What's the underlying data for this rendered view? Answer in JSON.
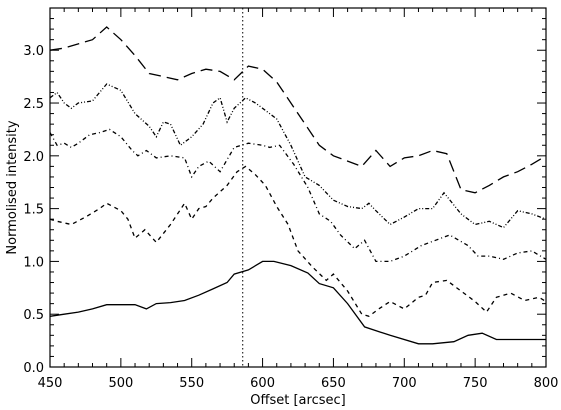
{
  "chart_data": {
    "type": "line",
    "title": "",
    "xlabel": "Offset [arcsec]",
    "ylabel": "Normolised intensity",
    "xlim": [
      450,
      800
    ],
    "ylim": [
      0.0,
      3.4
    ],
    "xticks": [
      450,
      500,
      550,
      600,
      650,
      700,
      750,
      800
    ],
    "xtick_labels": [
      "450",
      "500",
      "550",
      "600",
      "650",
      "700",
      "750",
      "800"
    ],
    "yticks": [
      0.0,
      0.5,
      1.0,
      1.5,
      2.0,
      2.5,
      3.0
    ],
    "ytick_labels": [
      "0.0",
      "0.5",
      "1.0",
      "1.5",
      "2.0",
      "2.5",
      "3.0"
    ],
    "grid": false,
    "reference_line": {
      "x": 586,
      "style": "dotted"
    },
    "series": [
      {
        "style": "solid",
        "color": "#000000",
        "x": [
          450,
          460,
          470,
          480,
          490,
          500,
          510,
          518,
          525,
          535,
          545,
          555,
          565,
          575,
          580,
          590,
          600,
          608,
          620,
          632,
          640,
          650,
          660,
          672,
          690,
          710,
          720,
          735,
          745,
          755,
          765,
          780,
          800
        ],
        "y": [
          0.48,
          0.5,
          0.52,
          0.55,
          0.59,
          0.59,
          0.59,
          0.55,
          0.6,
          0.61,
          0.63,
          0.68,
          0.74,
          0.8,
          0.88,
          0.92,
          1.0,
          1.0,
          0.96,
          0.89,
          0.79,
          0.75,
          0.6,
          0.38,
          0.3,
          0.22,
          0.22,
          0.24,
          0.3,
          0.32,
          0.26,
          0.26,
          0.26
        ]
      },
      {
        "style": "dashed",
        "color": "#000000",
        "x": [
          450,
          455,
          465,
          475,
          485,
          490,
          500,
          505,
          510,
          517,
          525,
          535,
          545,
          550,
          555,
          560,
          565,
          575,
          582,
          588,
          595,
          602,
          610,
          618,
          625,
          635,
          645,
          650,
          660,
          670,
          675,
          682,
          690,
          700,
          710,
          715,
          720,
          730,
          740,
          750,
          758,
          765,
          775,
          785,
          795,
          800
        ],
        "y": [
          1.4,
          1.38,
          1.35,
          1.42,
          1.5,
          1.55,
          1.48,
          1.4,
          1.22,
          1.3,
          1.18,
          1.35,
          1.55,
          1.4,
          1.5,
          1.52,
          1.6,
          1.72,
          1.85,
          1.9,
          1.82,
          1.72,
          1.52,
          1.35,
          1.1,
          0.95,
          0.82,
          0.88,
          0.72,
          0.5,
          0.48,
          0.55,
          0.62,
          0.55,
          0.66,
          0.68,
          0.8,
          0.82,
          0.72,
          0.62,
          0.52,
          0.66,
          0.7,
          0.63,
          0.66,
          0.62
        ]
      },
      {
        "style": "dash-dot",
        "color": "#000000",
        "x": [
          450,
          455,
          460,
          465,
          470,
          478,
          485,
          492,
          500,
          508,
          512,
          518,
          525,
          535,
          545,
          550,
          555,
          562,
          570,
          580,
          590,
          600,
          605,
          612,
          622,
          632,
          640,
          648,
          655,
          665,
          672,
          680,
          690,
          700,
          712,
          722,
          732,
          745,
          752,
          760,
          770,
          780,
          790,
          800
        ],
        "y": [
          2.22,
          2.1,
          2.12,
          2.08,
          2.12,
          2.2,
          2.22,
          2.25,
          2.18,
          2.05,
          2.0,
          2.05,
          1.98,
          2.0,
          1.98,
          1.8,
          1.9,
          1.95,
          1.85,
          2.08,
          2.12,
          2.1,
          2.08,
          2.1,
          1.92,
          1.7,
          1.45,
          1.38,
          1.25,
          1.12,
          1.2,
          1.0,
          1.0,
          1.05,
          1.15,
          1.2,
          1.25,
          1.15,
          1.05,
          1.05,
          1.02,
          1.08,
          1.1,
          1.02
        ]
      },
      {
        "style": "dash-dot-dot",
        "color": "#000000",
        "x": [
          450,
          455,
          460,
          465,
          470,
          480,
          490,
          500,
          510,
          520,
          525,
          530,
          535,
          542,
          550,
          558,
          565,
          570,
          575,
          580,
          588,
          595,
          600,
          610,
          620,
          630,
          640,
          650,
          660,
          670,
          675,
          680,
          690,
          700,
          710,
          720,
          728,
          740,
          750,
          760,
          770,
          775,
          780,
          790,
          800
        ],
        "y": [
          2.55,
          2.6,
          2.5,
          2.45,
          2.5,
          2.52,
          2.68,
          2.62,
          2.4,
          2.28,
          2.18,
          2.32,
          2.3,
          2.1,
          2.18,
          2.3,
          2.5,
          2.55,
          2.32,
          2.45,
          2.55,
          2.5,
          2.45,
          2.35,
          2.1,
          1.8,
          1.72,
          1.58,
          1.52,
          1.5,
          1.55,
          1.48,
          1.35,
          1.42,
          1.5,
          1.5,
          1.65,
          1.45,
          1.35,
          1.38,
          1.32,
          1.4,
          1.48,
          1.45,
          1.4
        ]
      },
      {
        "style": "long-dash",
        "color": "#000000",
        "x": [
          450,
          460,
          470,
          480,
          490,
          500,
          510,
          520,
          530,
          540,
          550,
          560,
          570,
          580,
          590,
          600,
          610,
          620,
          630,
          640,
          650,
          660,
          670,
          680,
          690,
          700,
          710,
          720,
          730,
          740,
          750,
          760,
          770,
          780,
          790,
          800
        ],
        "y": [
          3.0,
          3.02,
          3.06,
          3.1,
          3.22,
          3.1,
          2.95,
          2.78,
          2.75,
          2.72,
          2.78,
          2.82,
          2.8,
          2.72,
          2.85,
          2.82,
          2.7,
          2.5,
          2.3,
          2.1,
          2.0,
          1.95,
          1.9,
          2.05,
          1.9,
          1.98,
          2.0,
          2.05,
          2.02,
          1.68,
          1.65,
          1.72,
          1.8,
          1.85,
          1.92,
          2.0
        ]
      }
    ]
  }
}
